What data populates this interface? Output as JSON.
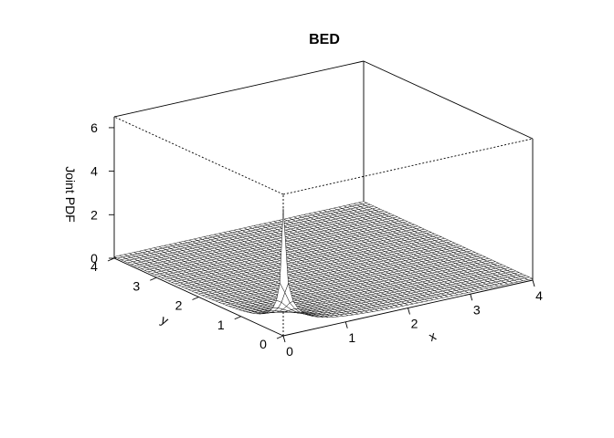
{
  "chart_data": {
    "type": "surface3d",
    "title": "BED",
    "xlabel": "x",
    "ylabel": "y",
    "zlabel": "Joint PDF",
    "xlim": [
      0,
      4
    ],
    "ylim": [
      0,
      4
    ],
    "zlim": [
      0,
      6.5
    ],
    "x_ticks": [
      "0",
      "1",
      "2",
      "3",
      "4"
    ],
    "y_ticks": [
      "0",
      "1",
      "2",
      "3",
      "4"
    ],
    "z_ticks": [
      "0",
      "2",
      "4",
      "6"
    ],
    "surface_color": "#ffffff",
    "line_color": "#000000",
    "peak": {
      "x": 0,
      "y": 0,
      "z": 6.5
    }
  }
}
